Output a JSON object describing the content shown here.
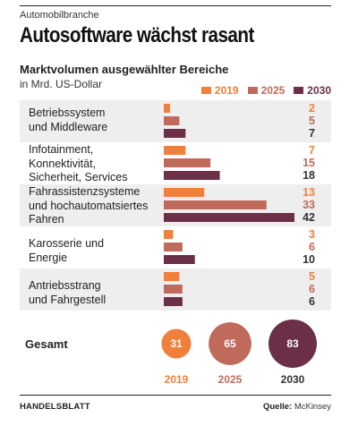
{
  "kicker": "Automobilbranche",
  "headline": "Autosoftware wächst rasant",
  "chart_data": {
    "type": "bar",
    "title": "Marktvolumen ausgewählter Bereiche",
    "unit": "in Mrd. US-Dollar",
    "legend_position": "top-right",
    "categories": [
      [
        "Betriebssystem",
        "und Middleware"
      ],
      [
        "Infotainment,",
        "Konnektivität,",
        "Sicherheit, Services"
      ],
      [
        "Fahrassistenzsysteme",
        "und hochautomatsiertes",
        "Fahren"
      ],
      [
        "Karosserie und",
        "Energie"
      ],
      [
        "Antriebsstrang",
        "und Fahrgestell"
      ]
    ],
    "series": [
      {
        "name": "2019",
        "values": [
          2,
          7,
          13,
          3,
          5
        ],
        "color": "#f07f3c"
      },
      {
        "name": "2025",
        "values": [
          5,
          15,
          33,
          6,
          6
        ],
        "color": "#c06a5c"
      },
      {
        "name": "2030",
        "values": [
          7,
          18,
          42,
          10,
          6
        ],
        "color": "#6b2f47"
      }
    ],
    "totals": {
      "label": "Gesamt",
      "items": [
        {
          "year": "2019",
          "value": 31,
          "color": "#f07f3c"
        },
        {
          "year": "2025",
          "value": 65,
          "color": "#c06a5c"
        },
        {
          "year": "2030",
          "value": 83,
          "color": "#6b2f47"
        }
      ]
    },
    "band_colors": [
      "#eeeeee",
      "#ffffff"
    ]
  },
  "footer": {
    "publisher": "HANDELSBLATT",
    "source_label": "Quelle:",
    "source": "McKinsey"
  }
}
